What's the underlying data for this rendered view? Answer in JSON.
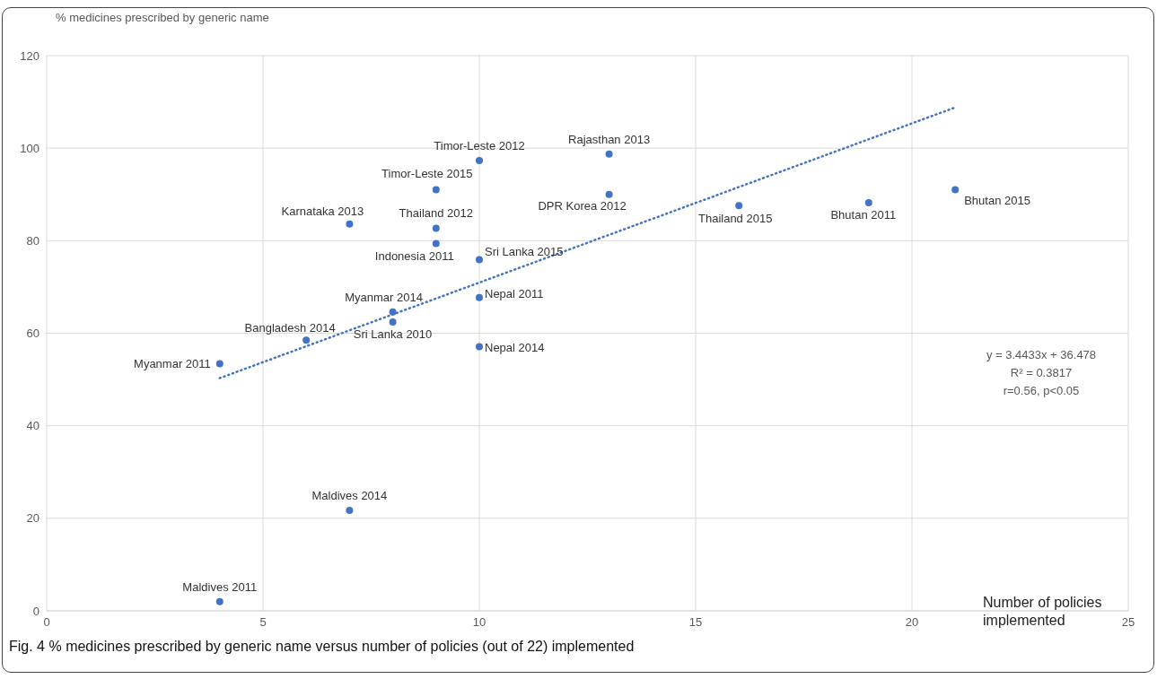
{
  "chart_data": {
    "type": "scatter",
    "ylabel": "% medicines prescribed by generic name",
    "xlabel": "Number of policies implemented",
    "xlim": [
      0,
      25
    ],
    "xticks": [
      0,
      5,
      10,
      15,
      20,
      25
    ],
    "ylim": [
      0,
      120
    ],
    "yticks": [
      0,
      20,
      40,
      60,
      80,
      100,
      120
    ],
    "grid": true,
    "legend": false,
    "series": [
      {
        "marker": "circle",
        "color": "#4472c4",
        "x": [
          4,
          4,
          6,
          7,
          7,
          8,
          8,
          9,
          9,
          9,
          10,
          10,
          10,
          10,
          13,
          13,
          16,
          19,
          21
        ],
        "values": [
          53.4,
          2.0,
          58.5,
          83.6,
          21.7,
          64.6,
          62.4,
          82.7,
          79.4,
          91.0,
          97.3,
          75.9,
          67.7,
          57.1,
          98.7,
          90.0,
          87.6,
          88.2,
          91.0
        ]
      },
      {
        "type": "line",
        "line_style": "dotted",
        "marker": "none",
        "color": "#4472c4",
        "x": [
          4,
          21
        ],
        "values": [
          50.3,
          108.8
        ]
      }
    ],
    "annotations": [
      {
        "text": "Myanmar 2011",
        "x": 4,
        "y": 53.4
      },
      {
        "text": "Maldives 2011",
        "x": 4,
        "y": 2.0
      },
      {
        "text": "Bangladesh 2014",
        "x": 6,
        "y": 58.5
      },
      {
        "text": "Karnataka 2013",
        "x": 7,
        "y": 83.6
      },
      {
        "text": "Maldives 2014",
        "x": 7,
        "y": 21.7
      },
      {
        "text": "Myanmar 2014",
        "x": 8,
        "y": 64.6
      },
      {
        "text": "Sri Lanka 2010",
        "x": 8,
        "y": 62.4
      },
      {
        "text": "Thailand 2012",
        "x": 9,
        "y": 82.7
      },
      {
        "text": "Indonesia 2011",
        "x": 9,
        "y": 79.4
      },
      {
        "text": "Timor-Leste 2015",
        "x": 9,
        "y": 91.0
      },
      {
        "text": "Timor-Leste 2012",
        "x": 10,
        "y": 97.3
      },
      {
        "text": "Sri Lanka 2015",
        "x": 10,
        "y": 75.9
      },
      {
        "text": "Nepal 2011",
        "x": 10,
        "y": 67.7
      },
      {
        "text": "Nepal 2014",
        "x": 10,
        "y": 57.1
      },
      {
        "text": "Rajasthan 2013",
        "x": 13,
        "y": 98.7
      },
      {
        "text": "DPR Korea 2012",
        "x": 13,
        "y": 90.0
      },
      {
        "text": "Thailand 2015",
        "x": 16,
        "y": 87.6
      },
      {
        "text": "Bhutan 2011",
        "x": 19,
        "y": 88.2
      },
      {
        "text": "Bhutan 2015",
        "x": 21,
        "y": 91.0
      },
      "y = 3.4433x + 36.478",
      "R² = 0.3817",
      "r=0.56, p<0.05",
      "Fig. 4 % medicines prescribed by generic name versus number of policies (out of 22) implemented"
    ]
  }
}
